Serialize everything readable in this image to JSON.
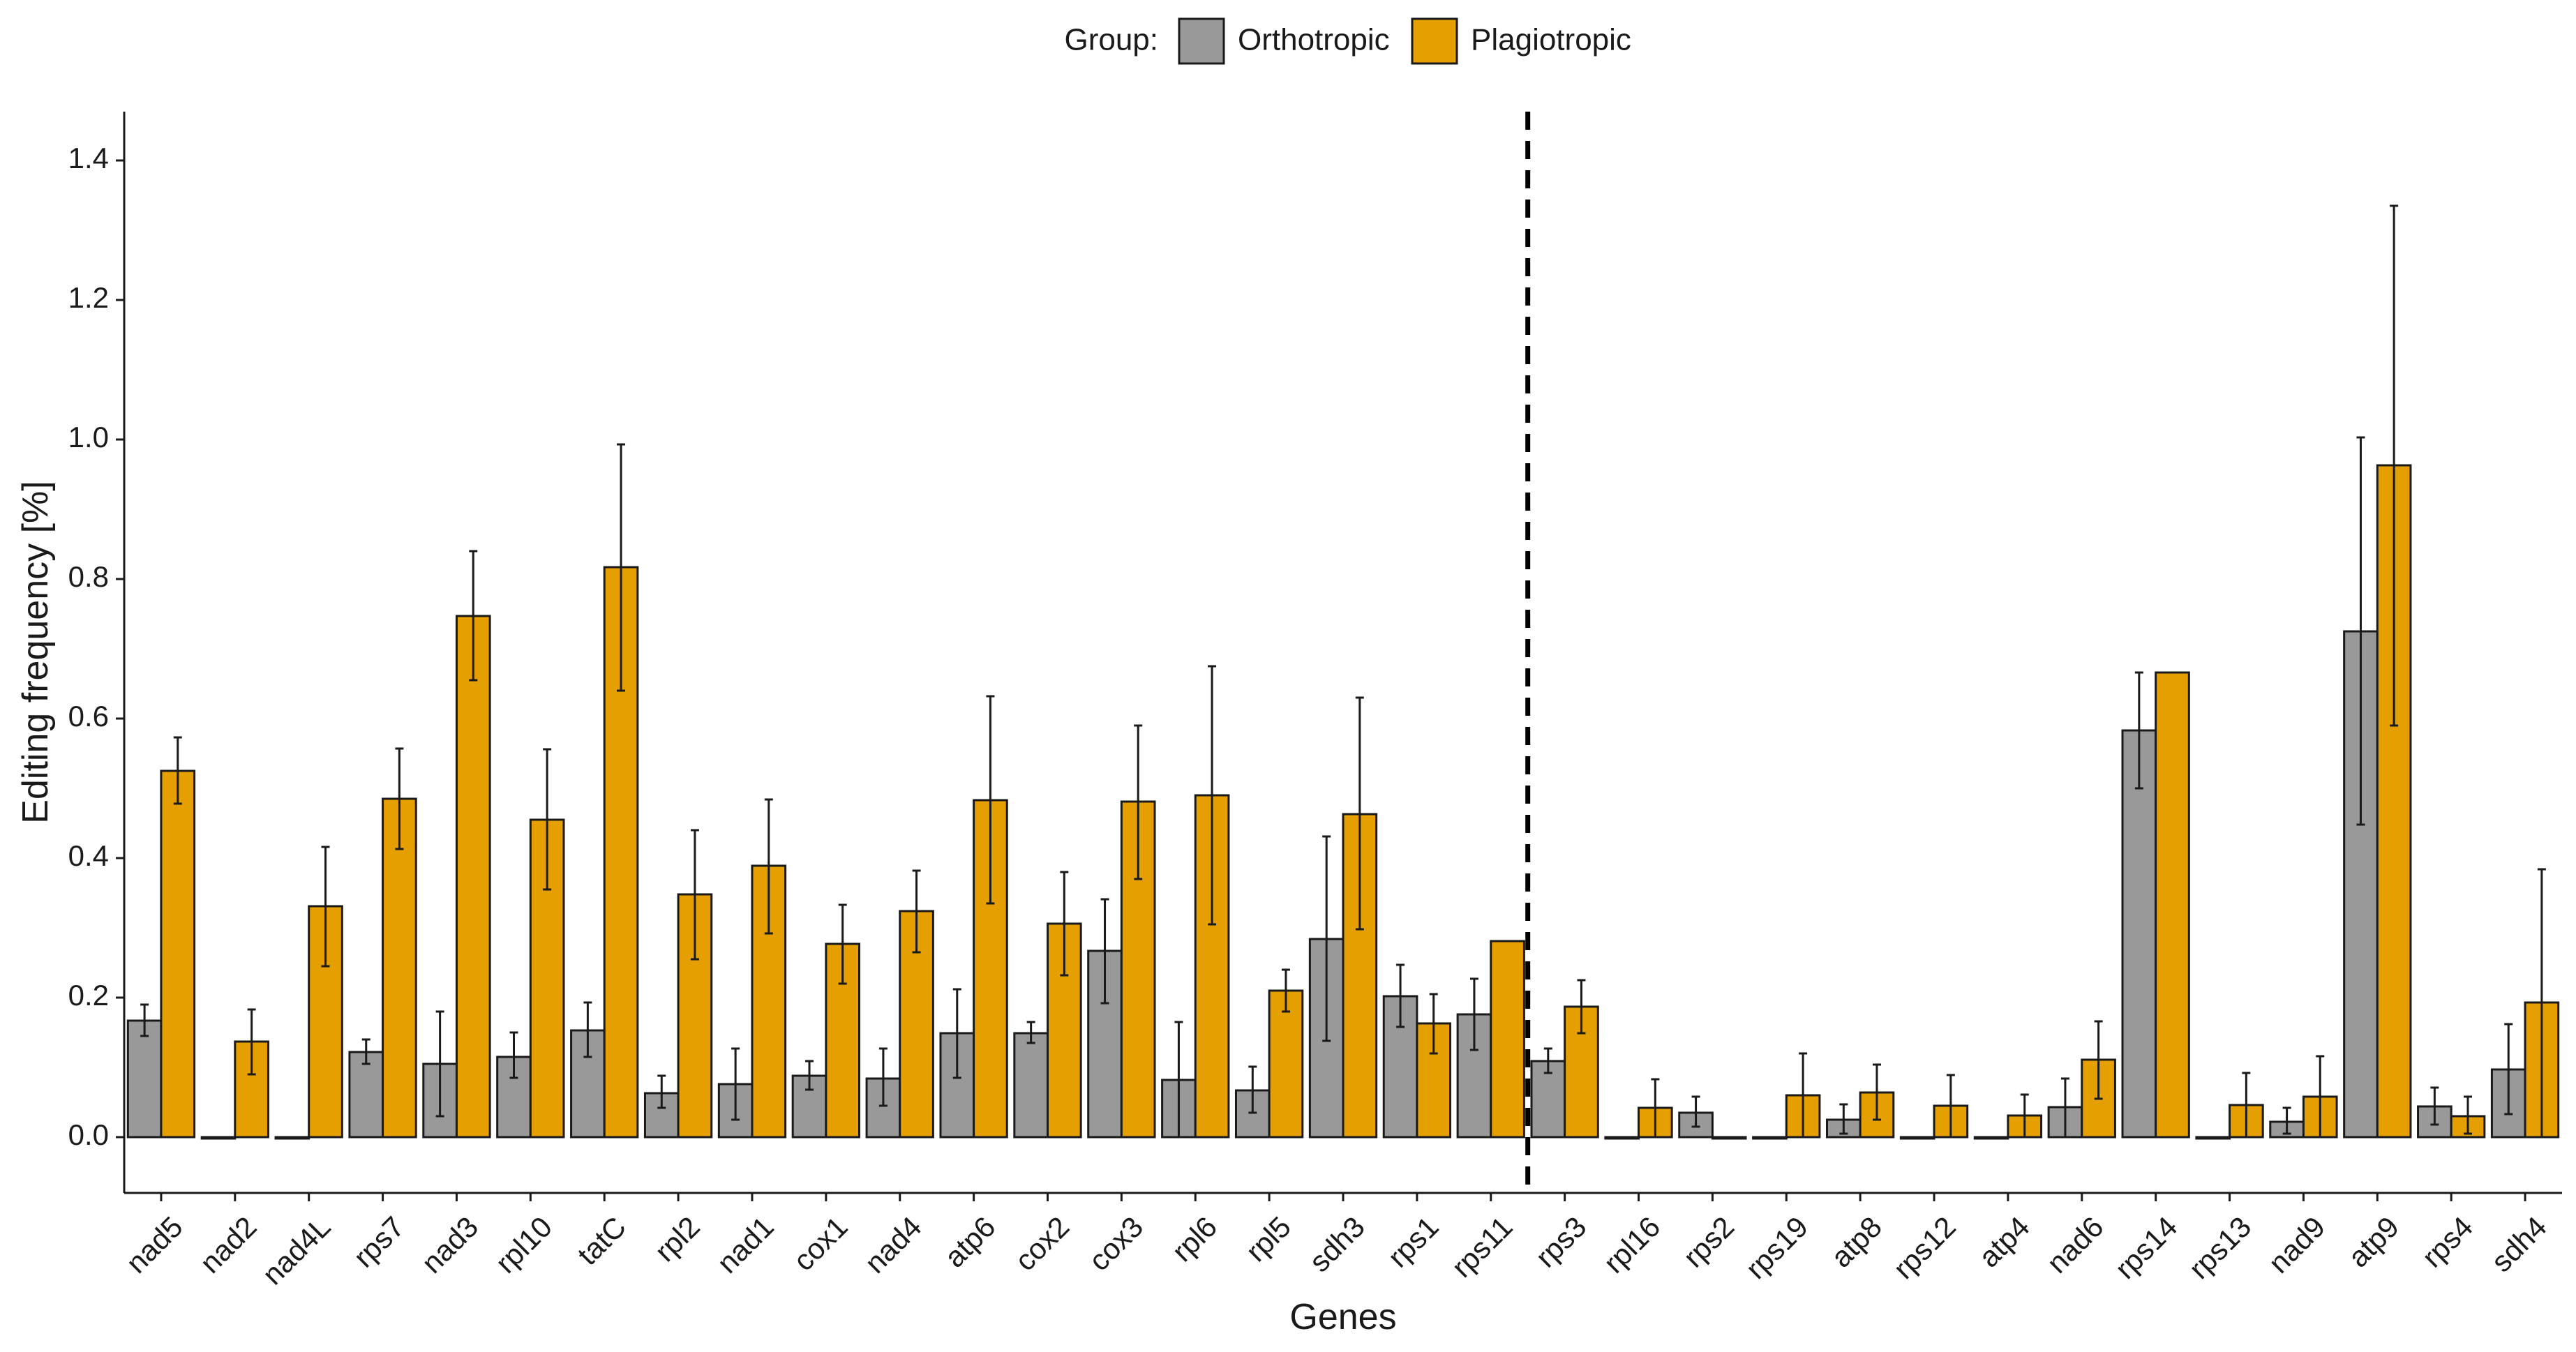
{
  "chart_data": {
    "type": "bar",
    "title": "",
    "xlabel": "Genes",
    "ylabel": "Editing frequency [%]",
    "ylim": [
      -0.08,
      1.47
    ],
    "yticks": [
      "0.0",
      "0.2",
      "0.4",
      "0.6",
      "0.8",
      "1.0",
      "1.2",
      "1.4"
    ],
    "ytick_values": [
      0.0,
      0.2,
      0.4,
      0.6,
      0.8,
      1.0,
      1.2,
      1.4
    ],
    "grid": false,
    "legend": {
      "title": "Group:",
      "placement": "top-center",
      "entries": [
        "Orthotropic",
        "Plagiotropic"
      ]
    },
    "colors": {
      "Orthotropic": "#999999",
      "Plagiotropic": "#E69F00",
      "outline": "#1a1a1a"
    },
    "divider_after_category": "rps11",
    "categories": [
      "nad5",
      "nad2",
      "nad4L",
      "rps7",
      "nad3",
      "rpl10",
      "tatC",
      "rpl2",
      "nad1",
      "cox1",
      "nad4",
      "atp6",
      "cox2",
      "cox3",
      "rpl6",
      "rpl5",
      "sdh3",
      "rps1",
      "rps11",
      "rps3",
      "rpl16",
      "rps2",
      "rps19",
      "atp8",
      "rps12",
      "atp4",
      "nad6",
      "rps14",
      "rps13",
      "nad9",
      "atp9",
      "rps4",
      "sdh4"
    ],
    "series": [
      {
        "name": "Orthotropic",
        "values": [
          0.167,
          0.0,
          0.0,
          0.122,
          0.105,
          0.115,
          0.153,
          0.063,
          0.076,
          0.088,
          0.084,
          0.149,
          0.149,
          0.267,
          0.082,
          0.067,
          0.284,
          0.202,
          0.176,
          0.109,
          0.0,
          0.035,
          0.0,
          0.025,
          0.0,
          0.0,
          0.043,
          0.583,
          0.0,
          0.022,
          0.725,
          0.044,
          0.097
        ],
        "err_low": [
          0.145,
          0.0,
          0.0,
          0.105,
          0.03,
          0.085,
          0.115,
          0.042,
          0.025,
          0.068,
          0.045,
          0.085,
          0.135,
          0.192,
          0.0,
          0.035,
          0.138,
          0.158,
          0.125,
          0.092,
          0.0,
          0.015,
          0.0,
          0.005,
          0.0,
          0.0,
          0.0,
          0.5,
          0.0,
          0.005,
          0.448,
          0.018,
          0.033
        ],
        "err_high": [
          0.19,
          0.0,
          0.0,
          0.14,
          0.18,
          0.15,
          0.193,
          0.088,
          0.127,
          0.109,
          0.127,
          0.212,
          0.165,
          0.341,
          0.165,
          0.101,
          0.431,
          0.247,
          0.227,
          0.127,
          0.0,
          0.058,
          0.0,
          0.047,
          0.0,
          0.0,
          0.084,
          0.666,
          0.0,
          0.042,
          1.003,
          0.071,
          0.162
        ]
      },
      {
        "name": "Plagiotropic",
        "values": [
          0.525,
          0.137,
          0.331,
          0.485,
          0.747,
          0.455,
          0.817,
          0.348,
          0.389,
          0.277,
          0.324,
          0.483,
          0.306,
          0.481,
          0.49,
          0.21,
          0.463,
          0.163,
          0.281,
          0.187,
          0.042,
          0.0,
          0.06,
          0.064,
          0.045,
          0.031,
          0.111,
          0.666,
          0.046,
          0.058,
          0.963,
          0.03,
          0.193
        ],
        "err_low": [
          0.478,
          0.09,
          0.245,
          0.413,
          0.655,
          0.355,
          0.64,
          0.255,
          0.292,
          0.22,
          0.265,
          0.335,
          0.232,
          0.37,
          0.305,
          0.18,
          0.298,
          0.12,
          0.281,
          0.149,
          0.0,
          0.0,
          0.0,
          0.025,
          0.0,
          0.0,
          0.055,
          0.666,
          0.0,
          0.0,
          0.59,
          0.005,
          0.0
        ],
        "err_high": [
          0.573,
          0.183,
          0.416,
          0.557,
          0.84,
          0.556,
          0.993,
          0.44,
          0.484,
          0.333,
          0.382,
          0.632,
          0.38,
          0.59,
          0.675,
          0.24,
          0.63,
          0.205,
          0.281,
          0.225,
          0.083,
          0.0,
          0.12,
          0.104,
          0.089,
          0.061,
          0.166,
          0.666,
          0.092,
          0.116,
          1.335,
          0.058,
          0.384
        ]
      }
    ]
  }
}
